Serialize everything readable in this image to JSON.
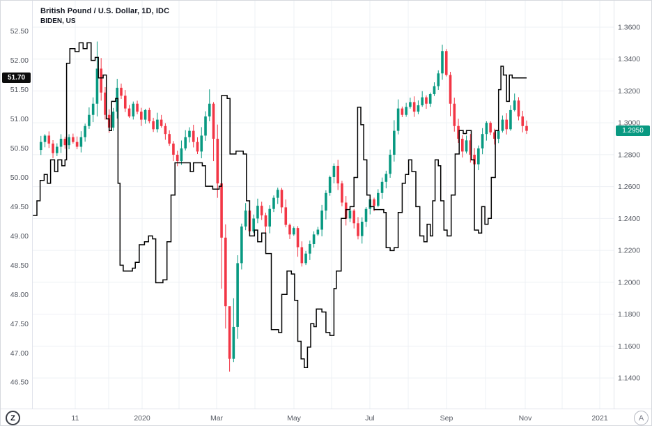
{
  "legend": {
    "title": "British Pound / U.S. Dollar, 1D, IDC",
    "compare": "BIDEN, US"
  },
  "footer": {
    "left_button": "Z",
    "right_button": "A"
  },
  "axes": {
    "left_last": 51.7,
    "left_last_label": "51.70",
    "right_last": 1.295,
    "right_last_label": "1.2950"
  },
  "colors": {
    "up": "#089981",
    "down": "#f23645",
    "line": "#000000",
    "grid": "#eef0f4",
    "separator": "#e0e3eb",
    "axis_text": "#555962",
    "title_text": "#131722",
    "label_left_bg": "#0c0c0c",
    "label_right_bg": "#089981"
  },
  "chart_data": {
    "type": "mixed",
    "title": "British Pound / U.S. Dollar, 1D, IDC",
    "compare_symbol": "BIDEN, US",
    "time_ticks": [
      "11",
      "2020",
      "Mar",
      "May",
      "Jul",
      "Sep",
      "Nov",
      "2021"
    ],
    "time_span": "late Oct 2019 to early Nov 2020, daily interval",
    "left_axis": {
      "belongs_to": "BIDEN, US",
      "range": [
        46.05,
        53.02
      ],
      "ticks": [
        "52.50",
        "52.00",
        "51.50",
        "51.00",
        "50.50",
        "50.00",
        "49.50",
        "49.00",
        "48.50",
        "48.00",
        "47.50",
        "47.00",
        "46.50"
      ],
      "last_value": 51.7
    },
    "right_axis": {
      "belongs_to": "British Pound / U.S. Dollar",
      "range": [
        1.1208,
        1.3766
      ],
      "ticks": [
        "1.3600",
        "1.3400",
        "1.3200",
        "1.3000",
        "1.2800",
        "1.2600",
        "1.2400",
        "1.2200",
        "1.2000",
        "1.1800",
        "1.1600",
        "1.1400"
      ],
      "last_value": 1.295
    },
    "series": [
      {
        "name": "British Pound / U.S. Dollar",
        "type": "candlestick",
        "axis": "right",
        "point_interval_days": 3,
        "closes": [
          1.283,
          1.288,
          1.292,
          1.287,
          1.281,
          1.285,
          1.29,
          1.286,
          1.291,
          1.288,
          1.285,
          1.291,
          1.298,
          1.305,
          1.312,
          1.334,
          1.319,
          1.305,
          1.297,
          1.307,
          1.322,
          1.317,
          1.309,
          1.304,
          1.312,
          1.307,
          1.302,
          1.308,
          1.301,
          1.296,
          1.302,
          1.298,
          1.293,
          1.287,
          1.28,
          1.276,
          1.284,
          1.291,
          1.295,
          1.288,
          1.282,
          1.292,
          1.304,
          1.312,
          1.29,
          1.262,
          1.228,
          1.185,
          1.152,
          1.172,
          1.212,
          1.235,
          1.245,
          1.232,
          1.24,
          1.248,
          1.242,
          1.235,
          1.246,
          1.253,
          1.258,
          1.247,
          1.236,
          1.23,
          1.234,
          1.222,
          1.212,
          1.218,
          1.224,
          1.23,
          1.233,
          1.245,
          1.256,
          1.266,
          1.273,
          1.262,
          1.25,
          1.24,
          1.245,
          1.237,
          1.229,
          1.238,
          1.246,
          1.252,
          1.248,
          1.256,
          1.263,
          1.268,
          1.28,
          1.295,
          1.309,
          1.305,
          1.31,
          1.313,
          1.307,
          1.311,
          1.316,
          1.312,
          1.318,
          1.323,
          1.331,
          1.345,
          1.33,
          1.312,
          1.298,
          1.29,
          1.282,
          1.289,
          1.28,
          1.274,
          1.284,
          1.293,
          1.3,
          1.294,
          1.29,
          1.295,
          1.302,
          1.296,
          1.308,
          1.314,
          1.304,
          1.298,
          1.295
        ],
        "wick_overrides": {
          "15": [
            1.351,
            1.304
          ],
          "43": [
            1.321,
            1.301
          ],
          "44": [
            1.313,
            1.276
          ],
          "46": [
            1.24,
            1.196
          ],
          "48": [
            1.168,
            1.144
          ],
          "49": [
            1.19,
            1.15
          ],
          "101": [
            1.349,
            1.327
          ]
        },
        "last_close": 1.295
      },
      {
        "name": "BIDEN, US",
        "type": "step_line",
        "axis": "left",
        "points": [
          [
            -1,
            49.35
          ],
          [
            0,
            49.6
          ],
          [
            0.8,
            49.95
          ],
          [
            1.8,
            50.05
          ],
          [
            2.6,
            49.9
          ],
          [
            3.4,
            50.3
          ],
          [
            4.4,
            50.1
          ],
          [
            5.2,
            50.3
          ],
          [
            6.2,
            50.2
          ],
          [
            7,
            50.3
          ],
          [
            7.4,
            51.95
          ],
          [
            8.2,
            52.2
          ],
          [
            9.5,
            52.15
          ],
          [
            10.5,
            52.3
          ],
          [
            11.5,
            52.2
          ],
          [
            12.5,
            52.3
          ],
          [
            13.5,
            52.0
          ],
          [
            14.5,
            52.05
          ],
          [
            15.3,
            51.7
          ],
          [
            16.5,
            51.75
          ],
          [
            17.3,
            51.0
          ],
          [
            18,
            50.8
          ],
          [
            18.6,
            51.3
          ],
          [
            19.6,
            51.35
          ],
          [
            20.2,
            49.9
          ],
          [
            20.7,
            48.5
          ],
          [
            21.5,
            48.4
          ],
          [
            23.8,
            48.45
          ],
          [
            24.5,
            48.55
          ],
          [
            25.5,
            48.85
          ],
          [
            26.8,
            48.9
          ],
          [
            27.8,
            49.0
          ],
          [
            28.8,
            48.95
          ],
          [
            29.6,
            48.2
          ],
          [
            31.4,
            48.25
          ],
          [
            32.4,
            48.9
          ],
          [
            33.4,
            49.7
          ],
          [
            34.4,
            50.25
          ],
          [
            37.6,
            50.25
          ],
          [
            38.2,
            50.1
          ],
          [
            39,
            50.25
          ],
          [
            41.2,
            50.2
          ],
          [
            42,
            49.85
          ],
          [
            43.8,
            49.8
          ],
          [
            45.4,
            49.85
          ],
          [
            46,
            51.4
          ],
          [
            47.4,
            51.35
          ],
          [
            48.1,
            50.4
          ],
          [
            49.6,
            50.45
          ],
          [
            51.4,
            50.4
          ],
          [
            52.2,
            49.6
          ],
          [
            53,
            49.0
          ],
          [
            54.2,
            49.1
          ],
          [
            55,
            48.9
          ],
          [
            56,
            49.05
          ],
          [
            57,
            48.7
          ],
          [
            58.4,
            47.4
          ],
          [
            60.2,
            47.35
          ],
          [
            61,
            48.0
          ],
          [
            62.3,
            48.4
          ],
          [
            63.4,
            48.35
          ],
          [
            64.2,
            47.9
          ],
          [
            65,
            47.2
          ],
          [
            65.8,
            46.9
          ],
          [
            66.6,
            46.75
          ],
          [
            67.4,
            47.1
          ],
          [
            68.2,
            47.5
          ],
          [
            69,
            47.45
          ],
          [
            69.6,
            47.75
          ],
          [
            71,
            47.7
          ],
          [
            72,
            47.35
          ],
          [
            73,
            47.3
          ],
          [
            74,
            48.1
          ],
          [
            74.6,
            48.4
          ],
          [
            75.8,
            49.3
          ],
          [
            77,
            49.45
          ],
          [
            78,
            49.5
          ],
          [
            79,
            50.0
          ],
          [
            79.9,
            51.2
          ],
          [
            80.7,
            50.9
          ],
          [
            81.4,
            50.3
          ],
          [
            82.2,
            49.7
          ],
          [
            83,
            49.5
          ],
          [
            84,
            49.45
          ],
          [
            86.4,
            49.4
          ],
          [
            87,
            48.8
          ],
          [
            88,
            48.75
          ],
          [
            89,
            48.8
          ],
          [
            90,
            49.4
          ],
          [
            91,
            49.9
          ],
          [
            91.8,
            50.05
          ],
          [
            92.6,
            50.3
          ],
          [
            93.4,
            50.1
          ],
          [
            94.4,
            49.5
          ],
          [
            95.4,
            49.0
          ],
          [
            96.4,
            48.9
          ],
          [
            97.2,
            49.2
          ],
          [
            98,
            49.0
          ],
          [
            98.6,
            49.6
          ],
          [
            99.2,
            50.3
          ],
          [
            100,
            50.2
          ],
          [
            100.6,
            49.6
          ],
          [
            101.4,
            49.1
          ],
          [
            102.2,
            49.0
          ],
          [
            103.2,
            49.7
          ],
          [
            104.2,
            50.4
          ],
          [
            105.2,
            50.8
          ],
          [
            106.2,
            50.75
          ],
          [
            107,
            50.8
          ],
          [
            108.2,
            50.3
          ],
          [
            109,
            49.1
          ],
          [
            110,
            49.05
          ],
          [
            110.8,
            49.5
          ],
          [
            111.6,
            49.2
          ],
          [
            112.4,
            49.3
          ],
          [
            113.2,
            50.0
          ],
          [
            114.2,
            50.8
          ],
          [
            115,
            51.5
          ],
          [
            115.6,
            51.9
          ],
          [
            116.2,
            51.75
          ],
          [
            117,
            51.3
          ],
          [
            117.7,
            51.75
          ],
          [
            118.4,
            51.7
          ],
          [
            122,
            51.7
          ]
        ],
        "last_value": 51.7
      }
    ]
  }
}
